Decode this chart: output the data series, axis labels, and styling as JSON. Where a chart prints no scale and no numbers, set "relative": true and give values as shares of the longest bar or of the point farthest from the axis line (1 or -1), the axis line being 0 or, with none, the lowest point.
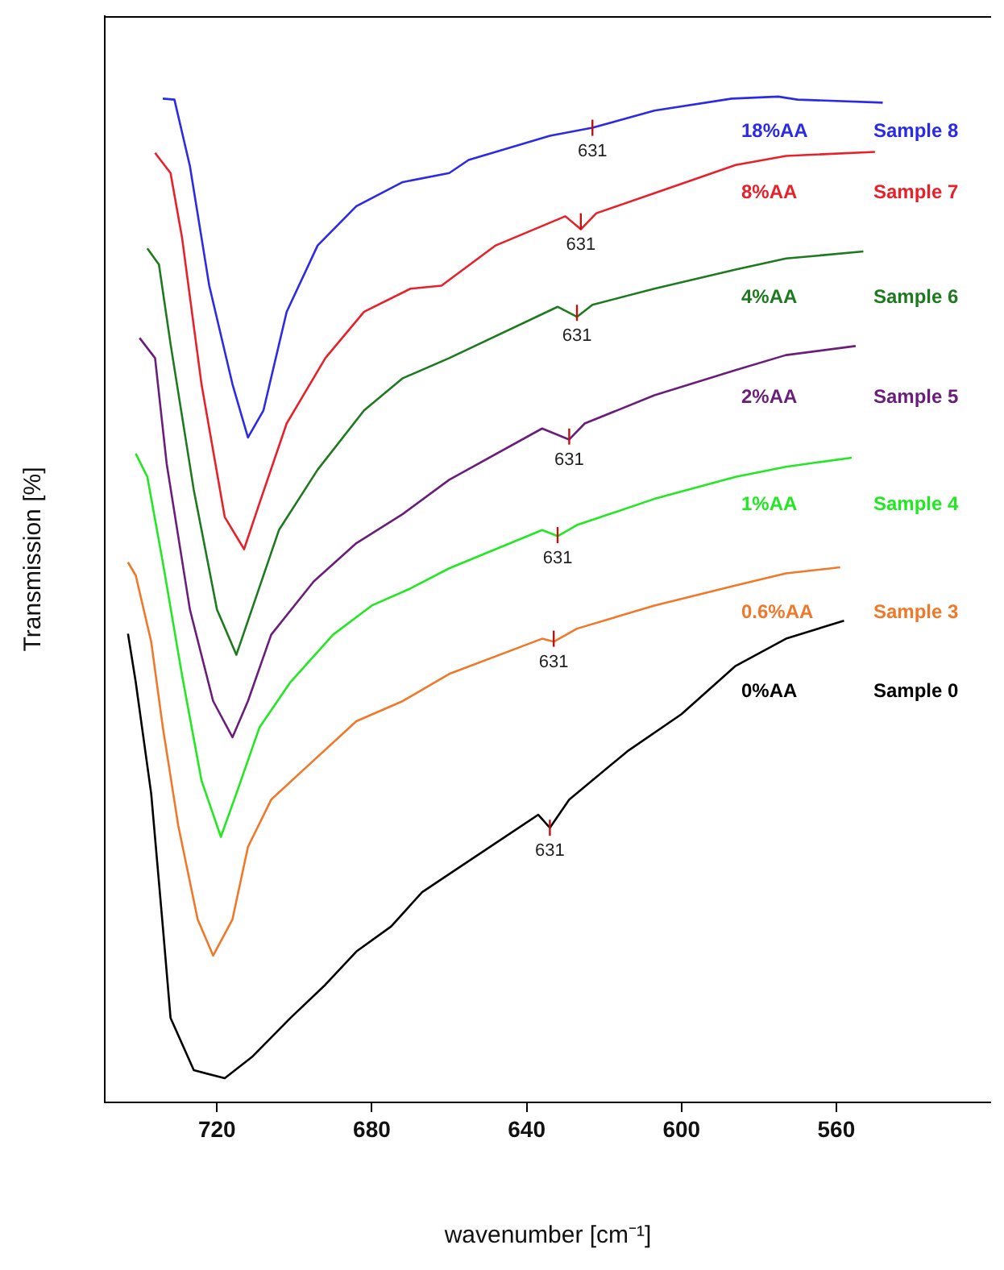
{
  "chart_data": {
    "type": "line",
    "relative": true,
    "xlabel": "wavenumber [cm⁻¹]",
    "ylabel": "Transmission [%]",
    "xlim": [
      749,
      520
    ],
    "xticks": [
      720,
      680,
      640,
      600,
      560
    ],
    "grid": false,
    "legend": false,
    "marker": "none",
    "line_style": "solid",
    "series": [
      {
        "name": "18%AA",
        "color": "#2a2ae8",
        "x": [
          734,
          731,
          727,
          722,
          716,
          712,
          708,
          702,
          694,
          684,
          672,
          660,
          655,
          634,
          623,
          607,
          587,
          575,
          570,
          548
        ],
        "values": [
          0.998,
          0.997,
          0.931,
          0.812,
          0.714,
          0.661,
          0.688,
          0.786,
          0.852,
          0.891,
          0.915,
          0.924,
          0.937,
          0.961,
          0.969,
          0.986,
          0.998,
          1,
          0.997,
          0.994
        ]
      },
      {
        "name": "8%AA",
        "color": "#e8202a",
        "x": [
          736,
          732,
          729,
          724,
          718,
          713,
          709,
          702,
          692,
          682,
          670,
          662,
          648,
          630,
          626,
          622,
          607,
          586,
          573,
          550
        ],
        "values": [
          0.944,
          0.924,
          0.859,
          0.714,
          0.582,
          0.55,
          0.596,
          0.675,
          0.74,
          0.786,
          0.809,
          0.812,
          0.852,
          0.881,
          0.868,
          0.884,
          0.904,
          0.932,
          0.941,
          0.945
        ]
      },
      {
        "name": "4%AA",
        "color": "#1e7a1e",
        "x": [
          738,
          735,
          732,
          726,
          720,
          715,
          711,
          704,
          694,
          682,
          672,
          660,
          632,
          627,
          623,
          607,
          586,
          573,
          553
        ],
        "values": [
          0.849,
          0.833,
          0.754,
          0.609,
          0.49,
          0.445,
          0.49,
          0.569,
          0.629,
          0.688,
          0.72,
          0.74,
          0.791,
          0.781,
          0.793,
          0.809,
          0.828,
          0.839,
          0.846
        ]
      },
      {
        "name": "2%AA",
        "color": "#6a1e7a",
        "x": [
          740,
          736,
          733,
          727,
          721,
          716,
          712,
          706,
          695,
          684,
          672,
          660,
          636,
          629,
          625,
          607,
          586,
          573,
          555
        ],
        "values": [
          0.76,
          0.74,
          0.635,
          0.49,
          0.399,
          0.363,
          0.399,
          0.465,
          0.518,
          0.556,
          0.585,
          0.619,
          0.67,
          0.659,
          0.675,
          0.703,
          0.728,
          0.743,
          0.752
        ]
      },
      {
        "name": "1%AA",
        "color": "#22e822",
        "x": [
          741,
          738,
          734,
          729,
          724,
          719,
          715,
          709,
          701,
          690,
          680,
          670,
          660,
          636,
          632,
          627,
          607,
          586,
          573,
          556
        ],
        "values": [
          0.645,
          0.622,
          0.537,
          0.424,
          0.32,
          0.264,
          0.307,
          0.373,
          0.418,
          0.465,
          0.494,
          0.511,
          0.531,
          0.569,
          0.563,
          0.574,
          0.6,
          0.622,
          0.632,
          0.641
        ]
      },
      {
        "name": "0.6%AA",
        "color": "#f07828",
        "x": [
          743,
          741,
          737,
          734,
          730,
          725,
          721,
          716,
          712,
          706,
          697,
          684,
          672,
          660,
          636,
          633,
          627,
          607,
          586,
          573,
          559
        ],
        "values": [
          0.537,
          0.524,
          0.458,
          0.373,
          0.275,
          0.182,
          0.146,
          0.182,
          0.254,
          0.301,
          0.333,
          0.379,
          0.399,
          0.426,
          0.461,
          0.458,
          0.471,
          0.494,
          0.514,
          0.526,
          0.532
        ]
      },
      {
        "name": "0%AA",
        "color": "#000000",
        "x": [
          743,
          741,
          737,
          734,
          732,
          726,
          718,
          711,
          701,
          692,
          684,
          675,
          667,
          660,
          637,
          634,
          629,
          614,
          600,
          586,
          573,
          558
        ],
        "values": [
          0.466,
          0.418,
          0.307,
          0.175,
          0.084,
          0.032,
          0.024,
          0.045,
          0.084,
          0.117,
          0.15,
          0.175,
          0.209,
          0.227,
          0.286,
          0.273,
          0.301,
          0.349,
          0.386,
          0.434,
          0.461,
          0.479
        ]
      }
    ],
    "annotations": [
      "Sample 8",
      "Sample 7",
      "Sample 6",
      "Sample 5",
      "Sample 4",
      "Sample 3",
      "Sample 0",
      {
        "text": "631",
        "x": 623,
        "y": 0.969
      },
      {
        "text": "631",
        "x": 626,
        "y": 0.876
      },
      {
        "text": "631",
        "x": 627,
        "y": 0.785
      },
      {
        "text": "631",
        "x": 629,
        "y": 0.662
      },
      {
        "text": "631",
        "x": 632,
        "y": 0.564
      },
      {
        "text": "631",
        "x": 633,
        "y": 0.461
      },
      {
        "text": "631",
        "x": 634,
        "y": 0.273
      }
    ]
  }
}
